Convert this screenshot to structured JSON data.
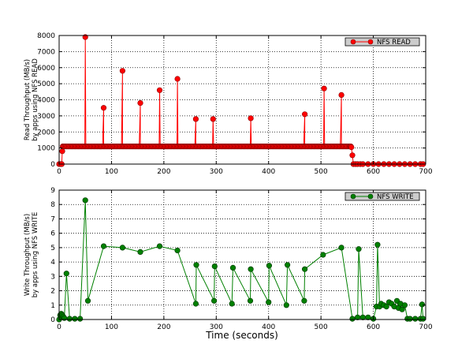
{
  "figure": {
    "xlabel": "Time (seconds)"
  },
  "colors": {
    "read": "#ff0000",
    "read_marker_edge": "#8b0000",
    "write": "#008000",
    "write_marker_edge": "#003300",
    "legend_bg": "#cccccc"
  },
  "chart_data": [
    {
      "type": "line",
      "title": "",
      "xlabel": "",
      "ylabel": "Read Throughput (MB/s)\nby apps using NFS READ",
      "xlim": [
        0,
        700
      ],
      "ylim": [
        0,
        8000
      ],
      "grid": true,
      "legend_position": "top-right",
      "x_ticks": [
        0,
        100,
        200,
        300,
        400,
        500,
        600,
        700
      ],
      "y_ticks": [
        0,
        1000,
        2000,
        3000,
        4000,
        5000,
        6000,
        7000,
        8000
      ],
      "baseline": {
        "x_start": 7,
        "x_end": 558,
        "step": 2,
        "value": 1100
      },
      "series": [
        {
          "name": "NFS READ",
          "x": [
            0,
            3,
            5,
            6,
            7,
            50,
            85,
            121,
            155,
            192,
            226,
            261,
            294,
            366,
            469,
            506,
            539,
            556,
            558,
            560,
            562,
            566,
            570,
            575,
            580,
            590,
            600,
            610,
            620,
            630,
            640,
            650,
            660,
            670,
            680,
            690,
            695
          ],
          "y": [
            0,
            0,
            0,
            800,
            1100,
            7900,
            3500,
            5800,
            3800,
            4600,
            5300,
            2800,
            2800,
            2850,
            3100,
            4700,
            4300,
            1100,
            1050,
            550,
            0,
            0,
            0,
            0,
            0,
            0,
            0,
            0,
            0,
            0,
            0,
            0,
            0,
            0,
            0,
            0,
            0
          ]
        }
      ]
    },
    {
      "type": "line",
      "title": "",
      "xlabel": "Time (seconds)",
      "ylabel": "Write Throughput (MB/s)\nby apps using NFS WRITE",
      "xlim": [
        0,
        700
      ],
      "ylim": [
        0,
        9
      ],
      "grid": true,
      "legend_position": "top-right",
      "x_ticks": [
        0,
        100,
        200,
        300,
        400,
        500,
        600,
        700
      ],
      "y_ticks": [
        0,
        1,
        2,
        3,
        4,
        5,
        6,
        7,
        8,
        9
      ],
      "series": [
        {
          "name": "NFS WRITE",
          "x": [
            0,
            2,
            4,
            6,
            8,
            10,
            14,
            20,
            30,
            40,
            50,
            55,
            85,
            121,
            155,
            192,
            226,
            261,
            262,
            296,
            297,
            330,
            332,
            365,
            366,
            400,
            401,
            434,
            436,
            468,
            469,
            504,
            539,
            560,
            570,
            572,
            580,
            590,
            600,
            606,
            608,
            612,
            615,
            620,
            625,
            630,
            635,
            640,
            645,
            648,
            652,
            655,
            660,
            665,
            670,
            680,
            690,
            693,
            695
          ],
          "y": [
            0,
            0.3,
            0.4,
            0.3,
            0.2,
            0.1,
            3.2,
            0.05,
            0.05,
            0.05,
            8.3,
            1.3,
            5.1,
            5.0,
            4.7,
            5.1,
            4.8,
            1.1,
            3.8,
            1.3,
            3.7,
            1.1,
            3.6,
            1.3,
            3.5,
            1.2,
            3.75,
            1.0,
            3.8,
            1.3,
            3.5,
            4.5,
            5.0,
            0.05,
            0.15,
            4.9,
            0.15,
            0.15,
            0.05,
            0.9,
            5.2,
            0.9,
            1.1,
            1.0,
            0.9,
            1.2,
            1.1,
            0.9,
            1.3,
            0.8,
            1.1,
            0.7,
            1.0,
            0.05,
            0.05,
            0.05,
            0.05,
            1.05,
            0.05
          ]
        }
      ]
    }
  ]
}
